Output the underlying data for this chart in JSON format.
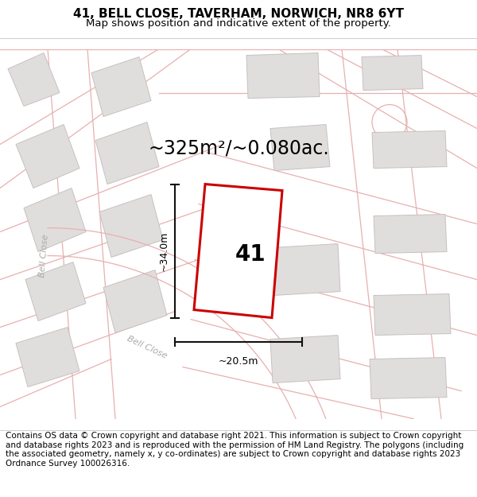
{
  "title_line1": "41, BELL CLOSE, TAVERHAM, NORWICH, NR8 6YT",
  "title_line2": "Map shows position and indicative extent of the property.",
  "footer_text": "Contains OS data © Crown copyright and database right 2021. This information is subject to Crown copyright and database rights 2023 and is reproduced with the permission of HM Land Registry. The polygons (including the associated geometry, namely x, y co-ordinates) are subject to Crown copyright and database rights 2023 Ordnance Survey 100026316.",
  "area_label": "~325m²/~0.080ac.",
  "number_label": "41",
  "dim_height": "~34.0m",
  "dim_width": "~20.5m",
  "road_label_diag": "Bell Close",
  "road_label_left": "Bell Close",
  "map_bg": "#f7f5f3",
  "plot_color_face": "#ffffff",
  "plot_color_edge": "#cc0000",
  "building_face": "#e0dedd",
  "building_edge": "#c8c0c0",
  "pink_line": "#e8b0b0",
  "dim_color": "#111111",
  "road_text_color": "#aaaaaa",
  "title_fontsize": 11,
  "subtitle_fontsize": 9.5,
  "footer_fontsize": 7.5,
  "label_fontsize": 20,
  "area_fontsize": 17,
  "dim_fontsize": 9,
  "road_fontsize": 8
}
